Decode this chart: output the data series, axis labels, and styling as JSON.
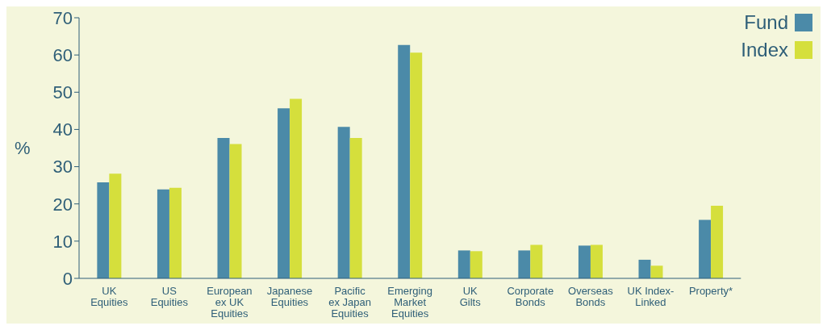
{
  "chart_data": {
    "type": "bar",
    "ylabel": "%",
    "categories": [
      "UK\nEquities",
      "US\nEquities",
      "European\nex UK\nEquities",
      "Japanese\nEquities",
      "Pacific\nex Japan\nEquities",
      "Emerging\nMarket\nEquities",
      "UK\nGilts",
      "Corporate\nBonds",
      "Overseas\nBonds",
      "UK Index-\nLinked",
      "Property*"
    ],
    "series": [
      {
        "name": "Fund",
        "color": "#4b8aa8",
        "values": [
          25.8,
          23.9,
          37.7,
          45.7,
          40.7,
          62.7,
          7.5,
          7.5,
          8.8,
          5.0,
          15.7
        ]
      },
      {
        "name": "Index",
        "color": "#d5df3c",
        "values": [
          28.1,
          24.3,
          36.1,
          48.2,
          37.7,
          60.6,
          7.3,
          9.0,
          9.0,
          3.4,
          19.5
        ]
      }
    ],
    "ylim": [
      0,
      70
    ],
    "yticks": [
      0,
      10,
      20,
      30,
      40,
      50,
      60,
      70
    ],
    "legend": "top right"
  }
}
